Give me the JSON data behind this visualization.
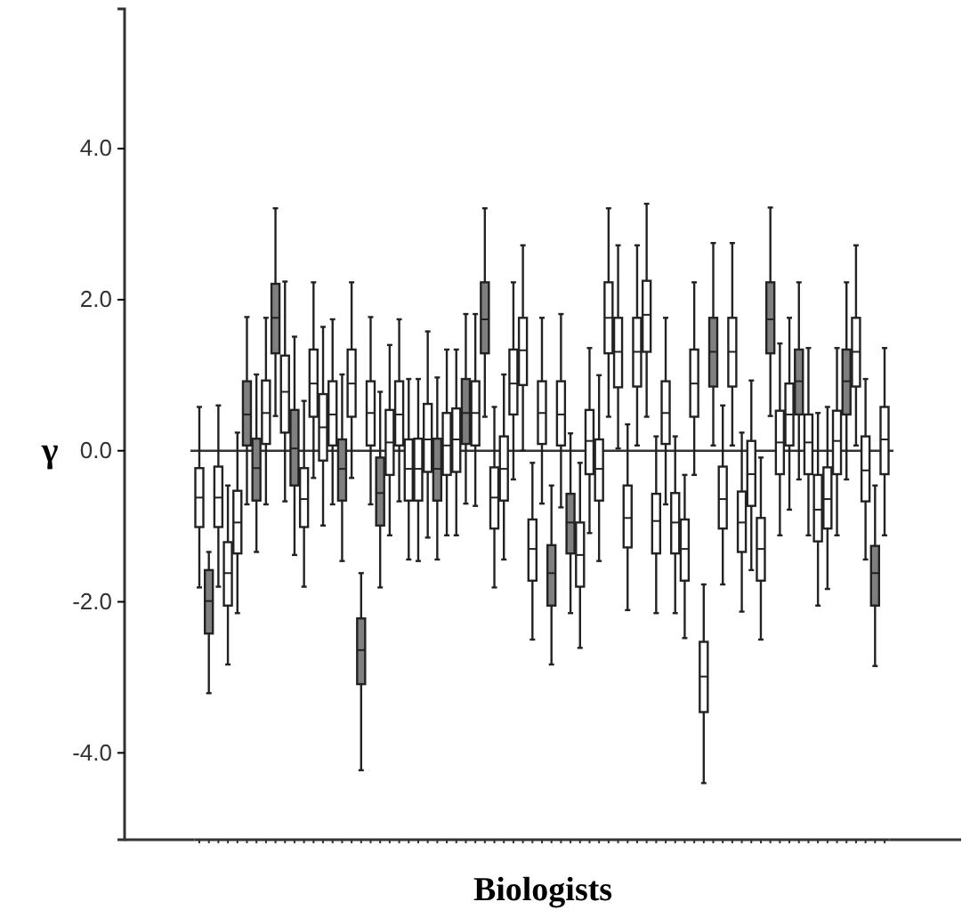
{
  "chart_data": {
    "type": "box",
    "xlabel": "Biologists",
    "ylabel": "γ",
    "ylim": [
      -5.15,
      5.85
    ],
    "yticks": [
      {
        "value": 4,
        "label": "4.0"
      },
      {
        "value": 2,
        "label": "2.0"
      },
      {
        "value": 0,
        "label": "0.0"
      },
      {
        "value": -2,
        "label": "-2.0"
      },
      {
        "value": -4,
        "label": "-4.0"
      }
    ],
    "grid": false,
    "ref_lines": [
      {
        "axis": "y",
        "value": 0,
        "color": "#333333"
      }
    ],
    "categories": [
      null,
      null,
      null,
      null,
      null,
      null,
      null,
      null,
      null,
      null,
      null,
      null,
      null,
      null,
      null,
      null,
      null,
      null,
      null,
      null,
      null,
      null,
      null,
      null,
      null,
      null,
      null,
      null,
      null,
      null,
      null,
      null,
      null,
      null,
      null,
      null,
      null,
      null,
      null,
      null,
      null,
      null,
      null,
      null,
      null,
      null,
      null,
      null,
      null,
      null,
      null,
      null,
      null,
      null,
      null,
      null,
      null,
      null,
      null,
      null,
      null,
      null,
      null,
      null,
      null,
      null,
      null,
      null,
      null,
      null,
      null,
      null,
      null
    ],
    "colors": [
      "#ffffff",
      "#7f7f7f",
      "#ffffff",
      "#ffffff",
      "#ffffff",
      "#7f7f7f",
      "#7f7f7f",
      "#ffffff",
      "#7f7f7f",
      "#ffffff",
      "#7f7f7f",
      "#ffffff",
      "#ffffff",
      "#ffffff",
      "#ffffff",
      "#7f7f7f",
      "#ffffff",
      "#7f7f7f",
      "#ffffff",
      "#7f7f7f",
      "#ffffff",
      "#ffffff",
      "#ffffff",
      "#ffffff",
      "#ffffff",
      "#7f7f7f",
      "#ffffff",
      "#ffffff",
      "#7f7f7f",
      "#ffffff",
      "#7f7f7f",
      "#ffffff",
      "#ffffff",
      "#ffffff",
      "#ffffff",
      "#ffffff",
      "#ffffff",
      "#7f7f7f",
      "#ffffff",
      "#7f7f7f",
      "#ffffff",
      "#ffffff",
      "#ffffff",
      "#ffffff",
      "#ffffff",
      "#ffffff",
      "#ffffff",
      "#ffffff",
      "#ffffff",
      "#ffffff",
      "#ffffff",
      "#ffffff",
      "#ffffff",
      "#ffffff",
      "#7f7f7f",
      "#ffffff",
      "#ffffff",
      "#ffffff",
      "#ffffff",
      "#ffffff",
      "#7f7f7f",
      "#ffffff",
      "#ffffff",
      "#7f7f7f",
      "#ffffff",
      "#ffffff",
      "#ffffff",
      "#ffffff",
      "#7f7f7f",
      "#ffffff",
      "#ffffff",
      "#7f7f7f",
      "#ffffff"
    ],
    "boxes": [
      {
        "low": -1.81,
        "q1": -1.01,
        "median": -0.62,
        "q3": -0.23,
        "high": 0.58
      },
      {
        "low": -3.21,
        "q1": -2.42,
        "median": -1.99,
        "q3": -1.58,
        "high": -1.34
      },
      {
        "low": -1.8,
        "q1": -1.01,
        "median": -0.62,
        "q3": -0.21,
        "high": 0.6
      },
      {
        "low": -2.83,
        "q1": -2.05,
        "median": -1.62,
        "q3": -1.21,
        "high": -0.46
      },
      {
        "low": -2.15,
        "q1": -1.36,
        "median": -0.95,
        "q3": -0.53,
        "high": 0.24
      },
      {
        "low": -0.71,
        "q1": 0.07,
        "median": 0.48,
        "q3": 0.92,
        "high": 1.77
      },
      {
        "low": -1.34,
        "q1": -0.66,
        "median": -0.23,
        "q3": 0.16,
        "high": 1.01
      },
      {
        "low": -0.71,
        "q1": 0.09,
        "median": 0.5,
        "q3": 0.93,
        "high": 1.76
      },
      {
        "low": 0.46,
        "q1": 1.29,
        "median": 1.76,
        "q3": 2.21,
        "high": 3.21
      },
      {
        "low": -0.67,
        "q1": 0.24,
        "median": 0.78,
        "q3": 1.26,
        "high": 2.24
      },
      {
        "low": -1.38,
        "q1": -0.46,
        "median": 0.03,
        "q3": 0.54,
        "high": 1.51
      },
      {
        "low": -1.8,
        "q1": -1.01,
        "median": -0.64,
        "q3": -0.23,
        "high": 0.66
      },
      {
        "low": -0.36,
        "q1": 0.45,
        "median": 0.89,
        "q3": 1.34,
        "high": 2.23
      },
      {
        "low": -0.99,
        "q1": -0.13,
        "median": 0.31,
        "q3": 0.75,
        "high": 1.64
      },
      {
        "low": -0.71,
        "q1": 0.07,
        "median": 0.48,
        "q3": 0.92,
        "high": 1.74
      },
      {
        "low": -1.46,
        "q1": -0.66,
        "median": -0.24,
        "q3": 0.15,
        "high": 1.01
      },
      {
        "low": -0.36,
        "q1": 0.45,
        "median": 0.89,
        "q3": 1.34,
        "high": 2.23
      },
      {
        "low": -4.23,
        "q1": -3.09,
        "median": -2.64,
        "q3": -2.22,
        "high": -1.62
      },
      {
        "low": -0.71,
        "q1": 0.07,
        "median": 0.5,
        "q3": 0.92,
        "high": 1.77
      },
      {
        "low": -1.81,
        "q1": -0.99,
        "median": -0.56,
        "q3": -0.09,
        "high": 0.78
      },
      {
        "low": -1.12,
        "q1": -0.32,
        "median": 0.11,
        "q3": 0.54,
        "high": 1.4
      },
      {
        "low": -0.67,
        "q1": 0.07,
        "median": 0.48,
        "q3": 0.92,
        "high": 1.74
      },
      {
        "low": -1.44,
        "q1": -0.66,
        "median": -0.24,
        "q3": 0.15,
        "high": 0.95
      },
      {
        "low": -1.46,
        "q1": -0.66,
        "median": -0.24,
        "q3": 0.16,
        "high": 0.95
      },
      {
        "low": -1.15,
        "q1": -0.28,
        "median": 0.15,
        "q3": 0.62,
        "high": 1.58
      },
      {
        "low": -1.44,
        "q1": -0.66,
        "median": -0.24,
        "q3": 0.16,
        "high": 0.97
      },
      {
        "low": -1.12,
        "q1": -0.32,
        "median": 0.07,
        "q3": 0.5,
        "high": 1.34
      },
      {
        "low": -1.12,
        "q1": -0.28,
        "median": 0.15,
        "q3": 0.56,
        "high": 1.34
      },
      {
        "low": -0.7,
        "q1": 0.09,
        "median": 0.5,
        "q3": 0.95,
        "high": 1.81
      },
      {
        "low": -0.73,
        "q1": 0.07,
        "median": 0.5,
        "q3": 0.92,
        "high": 1.81
      },
      {
        "low": 0.45,
        "q1": 1.29,
        "median": 1.74,
        "q3": 2.23,
        "high": 3.21
      },
      {
        "low": -1.81,
        "q1": -1.03,
        "median": -0.62,
        "q3": -0.22,
        "high": 0.58
      },
      {
        "low": -1.44,
        "q1": -0.66,
        "median": -0.24,
        "q3": 0.19,
        "high": 1.01
      },
      {
        "low": -0.38,
        "q1": 0.48,
        "median": 0.89,
        "q3": 1.34,
        "high": 2.23
      },
      {
        "low": 0.0,
        "q1": 0.87,
        "median": 1.33,
        "q3": 1.76,
        "high": 2.72
      },
      {
        "low": -2.5,
        "q1": -1.72,
        "median": -1.3,
        "q3": -0.91,
        "high": -0.16
      },
      {
        "low": -0.7,
        "q1": 0.09,
        "median": 0.5,
        "q3": 0.92,
        "high": 1.76
      },
      {
        "low": -2.83,
        "q1": -2.05,
        "median": -1.62,
        "q3": -1.25,
        "high": -0.46
      },
      {
        "low": -0.75,
        "q1": 0.07,
        "median": 0.48,
        "q3": 0.92,
        "high": 1.81
      },
      {
        "low": -2.15,
        "q1": -1.36,
        "median": -0.95,
        "q3": -0.57,
        "high": 0.23
      },
      {
        "low": -2.61,
        "q1": -1.8,
        "median": -1.38,
        "q3": -0.95,
        "high": -0.16
      },
      {
        "low": -1.09,
        "q1": -0.31,
        "median": 0.13,
        "q3": 0.54,
        "high": 1.36
      },
      {
        "low": -1.46,
        "q1": -0.66,
        "median": -0.24,
        "q3": 0.15,
        "high": 1.0
      },
      {
        "low": 0.45,
        "q1": 1.29,
        "median": 1.76,
        "q3": 2.23,
        "high": 3.21
      },
      {
        "low": 0.03,
        "q1": 0.84,
        "median": 1.31,
        "q3": 1.76,
        "high": 2.72
      },
      {
        "low": -2.11,
        "q1": -1.28,
        "median": -0.89,
        "q3": -0.46,
        "high": 0.35
      },
      {
        "low": 0.07,
        "q1": 0.85,
        "median": 1.31,
        "q3": 1.76,
        "high": 2.72
      },
      {
        "low": 0.45,
        "q1": 1.31,
        "median": 1.8,
        "q3": 2.25,
        "high": 3.27
      },
      {
        "low": -2.15,
        "q1": -1.36,
        "median": -0.93,
        "q3": -0.57,
        "high": 0.19
      },
      {
        "low": -0.71,
        "q1": 0.09,
        "median": 0.5,
        "q3": 0.92,
        "high": 1.76
      },
      {
        "low": -2.15,
        "q1": -1.36,
        "median": -0.95,
        "q3": -0.56,
        "high": 0.19
      },
      {
        "low": -2.48,
        "q1": -1.72,
        "median": -1.3,
        "q3": -0.91,
        "high": -0.32
      },
      {
        "low": -0.32,
        "q1": 0.45,
        "median": 0.89,
        "q3": 1.34,
        "high": 2.23
      },
      {
        "low": -4.4,
        "q1": -3.46,
        "median": -2.99,
        "q3": -2.53,
        "high": -1.77
      },
      {
        "low": 0.07,
        "q1": 0.85,
        "median": 1.31,
        "q3": 1.76,
        "high": 2.75
      },
      {
        "low": -1.77,
        "q1": -1.03,
        "median": -0.64,
        "q3": -0.21,
        "high": 0.6
      },
      {
        "low": 0.07,
        "q1": 0.85,
        "median": 1.31,
        "q3": 1.76,
        "high": 2.75
      },
      {
        "low": -2.13,
        "q1": -1.34,
        "median": -0.95,
        "q3": -0.54,
        "high": 0.24
      },
      {
        "low": -1.58,
        "q1": -0.73,
        "median": -0.31,
        "q3": 0.13,
        "high": 0.93
      },
      {
        "low": -2.5,
        "q1": -1.72,
        "median": -1.3,
        "q3": -0.89,
        "high": -0.09
      },
      {
        "low": 0.46,
        "q1": 1.29,
        "median": 1.74,
        "q3": 2.23,
        "high": 3.22
      },
      {
        "low": -1.12,
        "q1": -0.31,
        "median": 0.11,
        "q3": 0.53,
        "high": 1.42
      },
      {
        "low": -0.78,
        "q1": 0.07,
        "median": 0.48,
        "q3": 0.89,
        "high": 1.76
      },
      {
        "low": -0.38,
        "q1": 0.48,
        "median": 0.92,
        "q3": 1.34,
        "high": 2.23
      },
      {
        "low": -1.12,
        "q1": -0.31,
        "median": 0.11,
        "q3": 0.48,
        "high": 1.36
      },
      {
        "low": -2.05,
        "q1": -1.2,
        "median": -0.78,
        "q3": -0.32,
        "high": 0.5
      },
      {
        "low": -1.83,
        "q1": -1.03,
        "median": -0.64,
        "q3": -0.22,
        "high": 0.58
      },
      {
        "low": -1.12,
        "q1": -0.31,
        "median": 0.13,
        "q3": 0.53,
        "high": 1.36
      },
      {
        "low": -0.38,
        "q1": 0.48,
        "median": 0.92,
        "q3": 1.34,
        "high": 2.23
      },
      {
        "low": 0.07,
        "q1": 0.85,
        "median": 1.31,
        "q3": 1.76,
        "high": 2.72
      },
      {
        "low": -1.44,
        "q1": -0.67,
        "median": -0.26,
        "q3": 0.19,
        "high": 0.95
      },
      {
        "low": -2.85,
        "q1": -2.05,
        "median": -1.62,
        "q3": -1.26,
        "high": -0.46
      },
      {
        "low": -1.12,
        "q1": -0.31,
        "median": 0.15,
        "q3": 0.58,
        "high": 1.36
      }
    ]
  }
}
